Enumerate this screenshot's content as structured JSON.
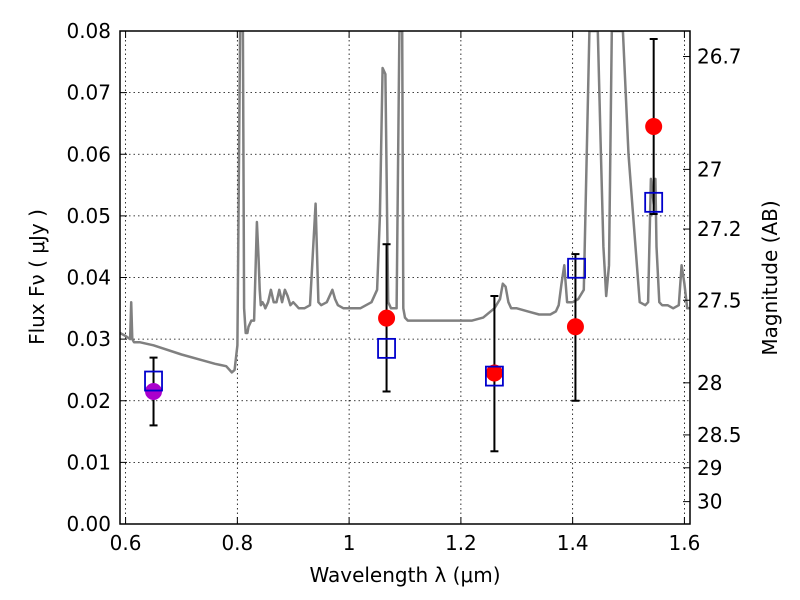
{
  "chart_data": {
    "type": "scatter",
    "xlabel": "Wavelength  λ (μm)",
    "ylabel": "Flux  Fν  ( μJy )",
    "y2label": "Magnitude (AB)",
    "xlim": [
      0.59,
      1.61
    ],
    "ylim": [
      0.0,
      0.08
    ],
    "grid": true,
    "x_ticks": [
      {
        "value": 0.6,
        "label": "0.6"
      },
      {
        "value": 0.8,
        "label": "0.8"
      },
      {
        "value": 1.0,
        "label": "1"
      },
      {
        "value": 1.2,
        "label": "1.2"
      },
      {
        "value": 1.4,
        "label": "1.4"
      },
      {
        "value": 1.6,
        "label": "1.6"
      }
    ],
    "y_ticks": [
      {
        "value": 0.0,
        "label": "0.00"
      },
      {
        "value": 0.01,
        "label": "0.01"
      },
      {
        "value": 0.02,
        "label": "0.02"
      },
      {
        "value": 0.03,
        "label": "0.03"
      },
      {
        "value": 0.04,
        "label": "0.04"
      },
      {
        "value": 0.05,
        "label": "0.05"
      },
      {
        "value": 0.06,
        "label": "0.06"
      },
      {
        "value": 0.07,
        "label": "0.07"
      },
      {
        "value": 0.08,
        "label": "0.08"
      }
    ],
    "mag_ticks": [
      {
        "mag": 26.7,
        "label": "26.7"
      },
      {
        "mag": 27.0,
        "label": "27"
      },
      {
        "mag": 27.2,
        "label": "27.2"
      },
      {
        "mag": 27.5,
        "label": "27.5"
      },
      {
        "mag": 28.0,
        "label": "28"
      },
      {
        "mag": 28.5,
        "label": "28.5"
      },
      {
        "mag": 29.0,
        "label": "29"
      },
      {
        "mag": 30.0,
        "label": "30"
      }
    ],
    "series": [
      {
        "name": "observed",
        "style": "filled-circle-errorbar",
        "points": [
          {
            "x": 0.65,
            "y": 0.0215,
            "yerr_low": 0.016,
            "yerr_high": 0.027,
            "color": "#aa00cc"
          },
          {
            "x": 1.067,
            "y": 0.0334,
            "yerr_low": 0.0215,
            "yerr_high": 0.0454,
            "color": "#ff0000"
          },
          {
            "x": 1.26,
            "y": 0.0245,
            "yerr_low": 0.0118,
            "yerr_high": 0.037,
            "color": "#ff0000"
          },
          {
            "x": 1.405,
            "y": 0.032,
            "yerr_low": 0.02,
            "yerr_high": 0.0438,
            "color": "#ff0000"
          },
          {
            "x": 1.545,
            "y": 0.0645,
            "yerr_low": 0.0503,
            "yerr_high": 0.0787,
            "color": "#ff0000"
          }
        ]
      },
      {
        "name": "model",
        "style": "open-square",
        "color": "#0000cc",
        "points": [
          {
            "x": 0.65,
            "y": 0.0232
          },
          {
            "x": 1.067,
            "y": 0.0285
          },
          {
            "x": 1.26,
            "y": 0.024
          },
          {
            "x": 1.407,
            "y": 0.0415
          },
          {
            "x": 1.545,
            "y": 0.0522
          }
        ]
      },
      {
        "name": "spectrum",
        "style": "line",
        "color": "#808080",
        "x": [
          0.59,
          0.6,
          0.608,
          0.61,
          0.612,
          0.615,
          0.625,
          0.65,
          0.7,
          0.74,
          0.76,
          0.77,
          0.78,
          0.79,
          0.795,
          0.8,
          0.805,
          0.808,
          0.81,
          0.812,
          0.815,
          0.818,
          0.82,
          0.825,
          0.83,
          0.835,
          0.838,
          0.84,
          0.842,
          0.845,
          0.848,
          0.85,
          0.855,
          0.86,
          0.865,
          0.87,
          0.875,
          0.88,
          0.885,
          0.89,
          0.895,
          0.9,
          0.905,
          0.91,
          0.915,
          0.92,
          0.93,
          0.94,
          0.945,
          0.95,
          0.96,
          0.97,
          0.975,
          0.98,
          0.99,
          1.0,
          1.02,
          1.04,
          1.05,
          1.055,
          1.06,
          1.065,
          1.068,
          1.07,
          1.075,
          1.08,
          1.085,
          1.09,
          1.093,
          1.095,
          1.097,
          1.1,
          1.105,
          1.12,
          1.14,
          1.16,
          1.18,
          1.2,
          1.22,
          1.24,
          1.26,
          1.27,
          1.275,
          1.28,
          1.285,
          1.29,
          1.3,
          1.32,
          1.34,
          1.36,
          1.37,
          1.375,
          1.38,
          1.385,
          1.39,
          1.4,
          1.41,
          1.42,
          1.43,
          1.44,
          1.445,
          1.45,
          1.455,
          1.46,
          1.465,
          1.47,
          1.48,
          1.49,
          1.5,
          1.52,
          1.53,
          1.535,
          1.54,
          1.545,
          1.548,
          1.55,
          1.555,
          1.56,
          1.57,
          1.58,
          1.59,
          1.595,
          1.6,
          1.605,
          1.61
        ],
        "y": [
          0.031,
          0.0305,
          0.03,
          0.036,
          0.03,
          0.0295,
          0.0295,
          0.029,
          0.0275,
          0.0265,
          0.026,
          0.0258,
          0.0256,
          0.0246,
          0.025,
          0.029,
          0.08,
          0.08,
          0.08,
          0.035,
          0.031,
          0.031,
          0.032,
          0.033,
          0.033,
          0.049,
          0.043,
          0.038,
          0.0355,
          0.036,
          0.0355,
          0.035,
          0.036,
          0.038,
          0.036,
          0.036,
          0.038,
          0.036,
          0.038,
          0.037,
          0.0355,
          0.036,
          0.0355,
          0.035,
          0.035,
          0.035,
          0.0355,
          0.052,
          0.036,
          0.0355,
          0.036,
          0.038,
          0.0365,
          0.0355,
          0.035,
          0.035,
          0.035,
          0.036,
          0.038,
          0.05,
          0.074,
          0.073,
          0.05,
          0.036,
          0.035,
          0.035,
          0.035,
          0.08,
          0.08,
          0.08,
          0.035,
          0.0335,
          0.033,
          0.033,
          0.033,
          0.033,
          0.033,
          0.033,
          0.033,
          0.0335,
          0.035,
          0.0365,
          0.039,
          0.0385,
          0.036,
          0.035,
          0.035,
          0.0345,
          0.034,
          0.034,
          0.0345,
          0.0355,
          0.039,
          0.042,
          0.036,
          0.036,
          0.0365,
          0.038,
          0.08,
          0.08,
          0.08,
          0.062,
          0.045,
          0.037,
          0.042,
          0.08,
          0.08,
          0.08,
          0.06,
          0.036,
          0.0355,
          0.036,
          0.056,
          0.052,
          0.056,
          0.045,
          0.036,
          0.0355,
          0.0355,
          0.035,
          0.0355,
          0.042,
          0.039,
          0.035,
          0.035
        ]
      }
    ]
  }
}
